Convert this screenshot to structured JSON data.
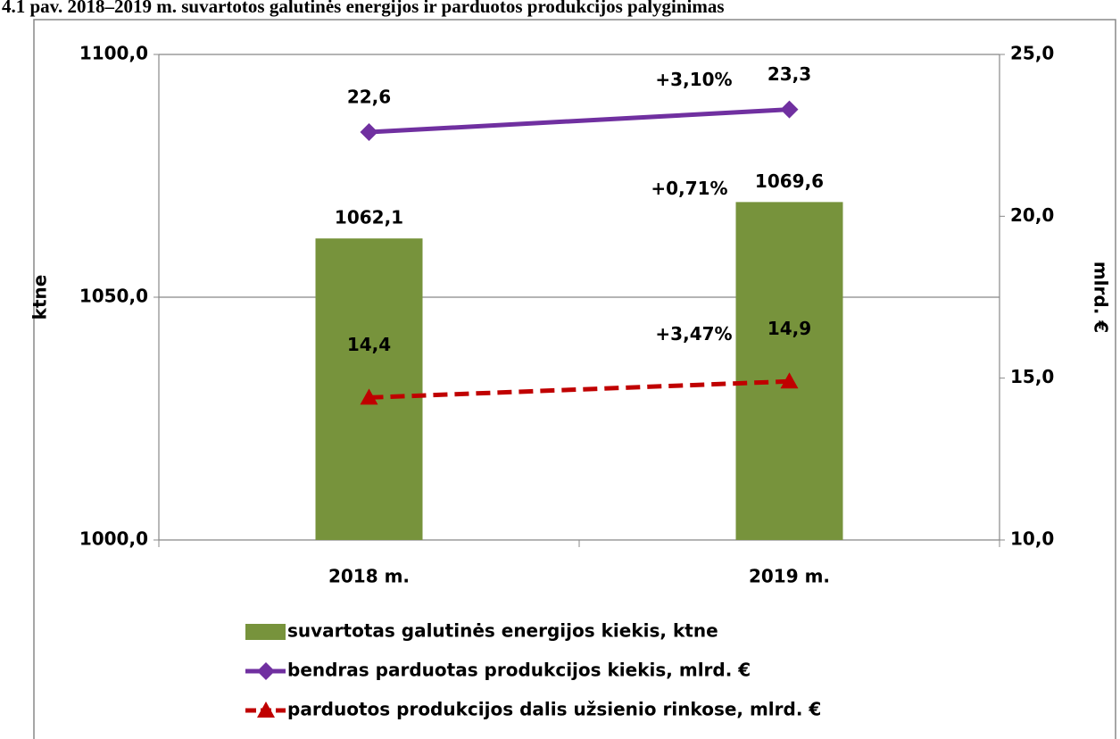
{
  "chart_data": {
    "type": "bar",
    "title": "4.1 pav. 2018–2019 m. suvartotos galutinės energijos ir parduotos produkcijos palyginimas",
    "categories": [
      "2018 m.",
      "2019 m."
    ],
    "ylabel": "ktne",
    "y2label": "mlrd. €",
    "ylim": [
      1000,
      1100
    ],
    "yticks": [
      {
        "value": 1000,
        "label": "1000,0"
      },
      {
        "value": 1050,
        "label": "1050,0"
      },
      {
        "value": 1100,
        "label": "1100,0"
      }
    ],
    "y2lim": [
      10,
      25
    ],
    "y2ticks": [
      {
        "value": 10,
        "label": "10,0"
      },
      {
        "value": 15,
        "label": "15,0"
      },
      {
        "value": 20,
        "label": "20,0"
      },
      {
        "value": 25,
        "label": "25,0"
      }
    ],
    "grid": true,
    "legend": "bottom",
    "series": [
      {
        "name": "suvartotas galutinės energijos kiekis, ktne",
        "type": "bar",
        "color": "#77933c",
        "values": [
          1062.1,
          1069.6
        ],
        "value_labels": [
          "1062,1",
          "1069,6"
        ],
        "change_label": "+0,71%"
      },
      {
        "name": "bendras parduotas produkcijos kiekis, mlrd. €",
        "type": "line",
        "axis": "y2",
        "color": "#7030a0",
        "marker": "diamond",
        "dashed": false,
        "values": [
          22.6,
          23.3
        ],
        "value_labels": [
          "22,6",
          "23,3"
        ],
        "change_label": "+3,10%"
      },
      {
        "name": "parduotos produkcijos dalis užsienio rinkose,  mlrd. €",
        "type": "line",
        "axis": "y2",
        "color": "#c00000",
        "marker": "triangle",
        "dashed": true,
        "values": [
          14.4,
          14.9
        ],
        "value_labels": [
          "14,4",
          "14,9"
        ],
        "change_label": "+3,47%"
      }
    ]
  }
}
